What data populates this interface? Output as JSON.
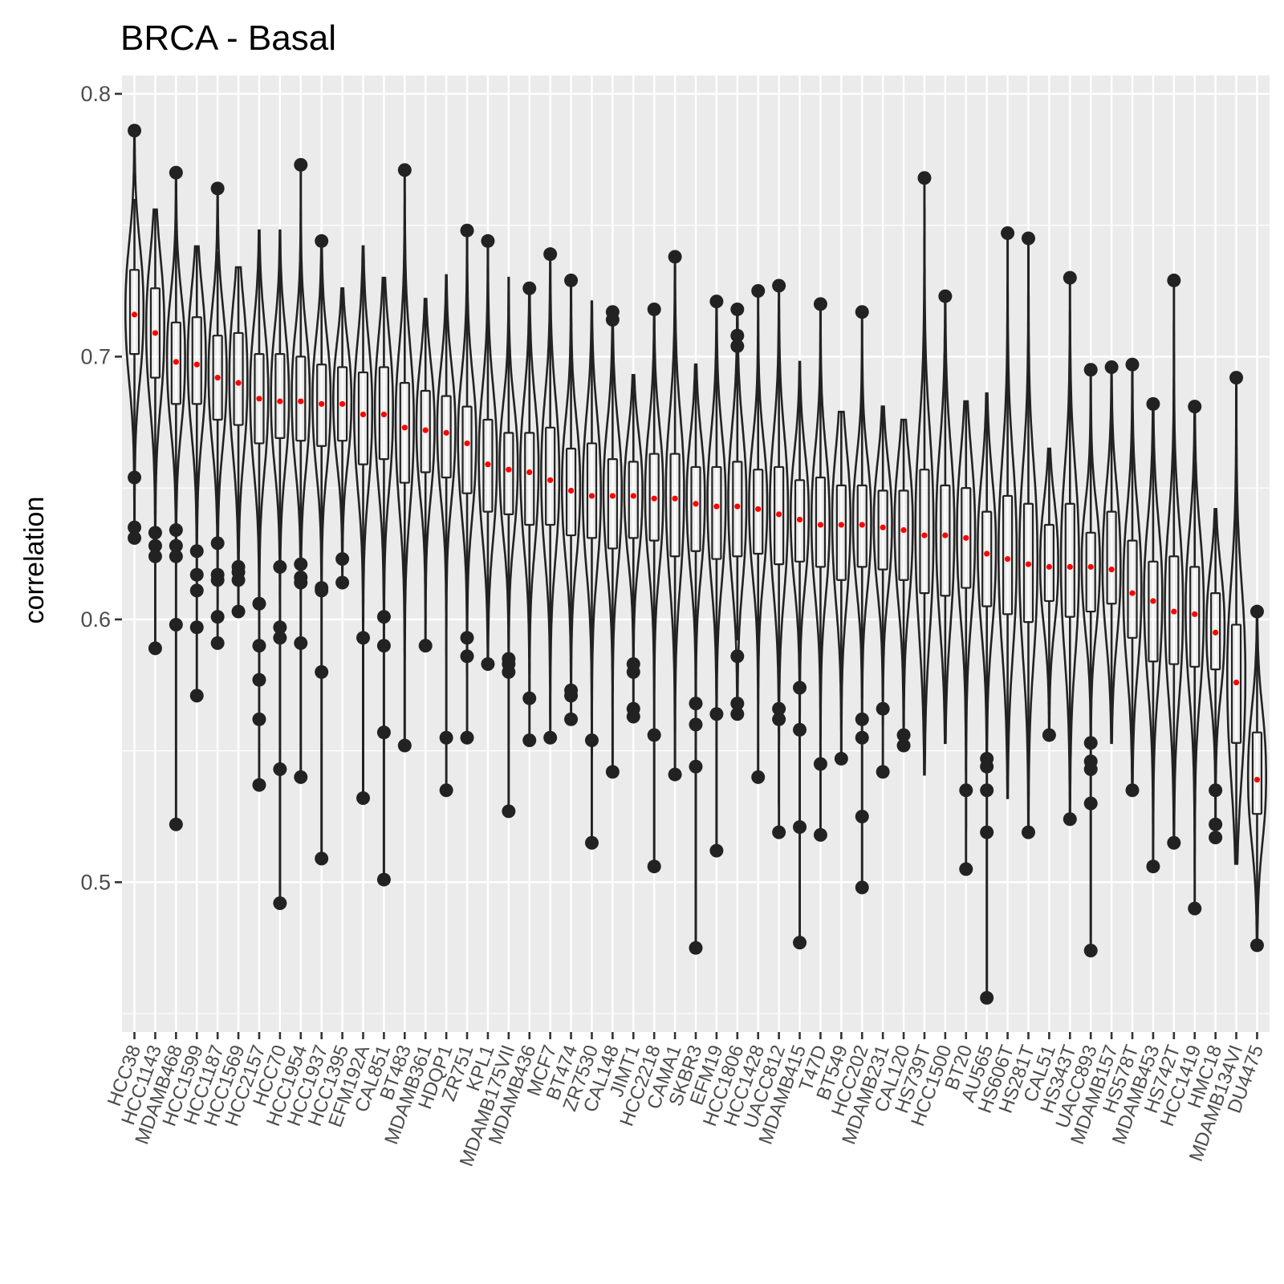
{
  "chart_data": {
    "type": "violin",
    "title": "BRCA - Basal",
    "xlabel": "",
    "ylabel": "correlation",
    "ylim": [
      0.443,
      0.807
    ],
    "yticks": [
      0.5,
      0.6,
      0.7,
      0.8
    ],
    "ytick_labels": [
      "0.5",
      "0.6",
      "0.7",
      "0.8"
    ],
    "grid": true,
    "colors": {
      "panel": "#ebebeb",
      "grid_major": "#ffffff",
      "outline": "#222222",
      "mean_point": "#ff0000"
    },
    "categories": [
      "HCC38",
      "HCC1143",
      "MDAMB468",
      "HCC1599",
      "HCC1187",
      "HCC1569",
      "HCC2157",
      "HCC70",
      "HCC1954",
      "HCC1937",
      "HCC1395",
      "EFM192A",
      "CAL851",
      "BT483",
      "MDAMB361",
      "HDQP1",
      "ZR751",
      "KPL1",
      "MDAMB175VII",
      "MDAMB436",
      "MCF7",
      "BT474",
      "ZR7530",
      "CAL148",
      "JIMT1",
      "HCC2218",
      "CAMA1",
      "SKBR3",
      "EFM19",
      "HCC1806",
      "HCC1428",
      "UACC812",
      "MDAMB415",
      "T47D",
      "BT549",
      "HCC202",
      "MDAMB231",
      "CAL120",
      "HS739T",
      "HCC1500",
      "BT20",
      "AU565",
      "HS606T",
      "HS281T",
      "CAL51",
      "HS343T",
      "UACC893",
      "MDAMB157",
      "HS578T",
      "MDAMB453",
      "HS742T",
      "HCC1419",
      "HMC18",
      "MDAMB134VI",
      "DU4475"
    ],
    "series": [
      {
        "name": "HCC38",
        "mean": 0.716,
        "q1": 0.701,
        "median": 0.716,
        "q3": 0.733,
        "whisker_low": 0.658,
        "whisker_high": 0.76,
        "min": 0.63,
        "max": 0.786,
        "outliers": [
          0.654,
          0.635,
          0.631,
          0.786
        ]
      },
      {
        "name": "HCC1143",
        "mean": 0.709,
        "q1": 0.692,
        "median": 0.709,
        "q3": 0.726,
        "whisker_low": 0.64,
        "whisker_high": 0.756,
        "min": 0.589,
        "max": 0.756,
        "outliers": [
          0.633,
          0.628,
          0.624,
          0.589
        ]
      },
      {
        "name": "MDAMB468",
        "mean": 0.698,
        "q1": 0.682,
        "median": 0.698,
        "q3": 0.713,
        "whisker_low": 0.64,
        "whisker_high": 0.75,
        "min": 0.522,
        "max": 0.77,
        "outliers": [
          0.77,
          0.634,
          0.628,
          0.624,
          0.598,
          0.522
        ]
      },
      {
        "name": "HCC1599",
        "mean": 0.697,
        "q1": 0.682,
        "median": 0.697,
        "q3": 0.715,
        "whisker_low": 0.63,
        "whisker_high": 0.742,
        "min": 0.571,
        "max": 0.742,
        "outliers": [
          0.626,
          0.617,
          0.611,
          0.597,
          0.571
        ]
      },
      {
        "name": "HCC1187",
        "mean": 0.692,
        "q1": 0.676,
        "median": 0.692,
        "q3": 0.708,
        "whisker_low": 0.632,
        "whisker_high": 0.74,
        "min": 0.591,
        "max": 0.764,
        "outliers": [
          0.764,
          0.629,
          0.617,
          0.615,
          0.601,
          0.591
        ]
      },
      {
        "name": "HCC1569",
        "mean": 0.69,
        "q1": 0.674,
        "median": 0.69,
        "q3": 0.709,
        "whisker_low": 0.625,
        "whisker_high": 0.734,
        "min": 0.603,
        "max": 0.734,
        "outliers": [
          0.62,
          0.618,
          0.615,
          0.603
        ]
      },
      {
        "name": "HCC2157",
        "mean": 0.684,
        "q1": 0.667,
        "median": 0.684,
        "q3": 0.701,
        "whisker_low": 0.615,
        "whisker_high": 0.748,
        "min": 0.537,
        "max": 0.748,
        "outliers": [
          0.606,
          0.59,
          0.577,
          0.562,
          0.537
        ]
      },
      {
        "name": "HCC70",
        "mean": 0.683,
        "q1": 0.669,
        "median": 0.683,
        "q3": 0.701,
        "whisker_low": 0.622,
        "whisker_high": 0.748,
        "min": 0.492,
        "max": 0.748,
        "outliers": [
          0.62,
          0.597,
          0.593,
          0.543,
          0.492
        ]
      },
      {
        "name": "HCC1954",
        "mean": 0.683,
        "q1": 0.668,
        "median": 0.683,
        "q3": 0.7,
        "whisker_low": 0.622,
        "whisker_high": 0.745,
        "min": 0.54,
        "max": 0.773,
        "outliers": [
          0.773,
          0.621,
          0.616,
          0.614,
          0.591,
          0.54
        ]
      },
      {
        "name": "HCC1937",
        "mean": 0.682,
        "q1": 0.666,
        "median": 0.682,
        "q3": 0.697,
        "whisker_low": 0.615,
        "whisker_high": 0.744,
        "min": 0.509,
        "max": 0.744,
        "outliers": [
          0.744,
          0.612,
          0.611,
          0.58,
          0.509
        ]
      },
      {
        "name": "HCC1395",
        "mean": 0.682,
        "q1": 0.668,
        "median": 0.682,
        "q3": 0.696,
        "whisker_low": 0.625,
        "whisker_high": 0.726,
        "min": 0.614,
        "max": 0.726,
        "outliers": [
          0.623,
          0.614
        ]
      },
      {
        "name": "EFM192A",
        "mean": 0.678,
        "q1": 0.659,
        "median": 0.678,
        "q3": 0.694,
        "whisker_low": 0.61,
        "whisker_high": 0.742,
        "min": 0.532,
        "max": 0.742,
        "outliers": [
          0.593,
          0.532
        ]
      },
      {
        "name": "CAL851",
        "mean": 0.678,
        "q1": 0.661,
        "median": 0.678,
        "q3": 0.696,
        "whisker_low": 0.61,
        "whisker_high": 0.73,
        "min": 0.501,
        "max": 0.73,
        "outliers": [
          0.601,
          0.59,
          0.557,
          0.501
        ]
      },
      {
        "name": "BT483",
        "mean": 0.673,
        "q1": 0.652,
        "median": 0.673,
        "q3": 0.69,
        "whisker_low": 0.6,
        "whisker_high": 0.74,
        "min": 0.552,
        "max": 0.771,
        "outliers": [
          0.771,
          0.552
        ]
      },
      {
        "name": "MDAMB361",
        "mean": 0.672,
        "q1": 0.656,
        "median": 0.672,
        "q3": 0.687,
        "whisker_low": 0.606,
        "whisker_high": 0.722,
        "min": 0.59,
        "max": 0.722,
        "outliers": [
          0.59
        ]
      },
      {
        "name": "HDQP1",
        "mean": 0.671,
        "q1": 0.654,
        "median": 0.671,
        "q3": 0.685,
        "whisker_low": 0.604,
        "whisker_high": 0.731,
        "min": 0.535,
        "max": 0.731,
        "outliers": [
          0.555,
          0.535
        ]
      },
      {
        "name": "ZR751",
        "mean": 0.667,
        "q1": 0.648,
        "median": 0.667,
        "q3": 0.681,
        "whisker_low": 0.6,
        "whisker_high": 0.73,
        "min": 0.555,
        "max": 0.748,
        "outliers": [
          0.748,
          0.593,
          0.586,
          0.555
        ]
      },
      {
        "name": "KPL1",
        "mean": 0.659,
        "q1": 0.641,
        "median": 0.659,
        "q3": 0.676,
        "whisker_low": 0.592,
        "whisker_high": 0.72,
        "min": 0.583,
        "max": 0.744,
        "outliers": [
          0.744,
          0.583
        ]
      },
      {
        "name": "MDAMB175VII",
        "mean": 0.657,
        "q1": 0.64,
        "median": 0.657,
        "q3": 0.671,
        "whisker_low": 0.592,
        "whisker_high": 0.73,
        "min": 0.527,
        "max": 0.73,
        "outliers": [
          0.585,
          0.583,
          0.58,
          0.527
        ]
      },
      {
        "name": "MDAMB436",
        "mean": 0.656,
        "q1": 0.636,
        "median": 0.656,
        "q3": 0.671,
        "whisker_low": 0.59,
        "whisker_high": 0.71,
        "min": 0.554,
        "max": 0.726,
        "outliers": [
          0.726,
          0.57,
          0.554
        ]
      },
      {
        "name": "MCF7",
        "mean": 0.653,
        "q1": 0.636,
        "median": 0.653,
        "q3": 0.673,
        "whisker_low": 0.59,
        "whisker_high": 0.72,
        "min": 0.555,
        "max": 0.739,
        "outliers": [
          0.739,
          0.555
        ]
      },
      {
        "name": "BT474",
        "mean": 0.649,
        "q1": 0.632,
        "median": 0.649,
        "q3": 0.665,
        "whisker_low": 0.585,
        "whisker_high": 0.71,
        "min": 0.562,
        "max": 0.729,
        "outliers": [
          0.729,
          0.573,
          0.571,
          0.562
        ]
      },
      {
        "name": "ZR7530",
        "mean": 0.647,
        "q1": 0.631,
        "median": 0.647,
        "q3": 0.667,
        "whisker_low": 0.58,
        "whisker_high": 0.721,
        "min": 0.515,
        "max": 0.721,
        "outliers": [
          0.554,
          0.515
        ]
      },
      {
        "name": "CAL148",
        "mean": 0.647,
        "q1": 0.627,
        "median": 0.647,
        "q3": 0.661,
        "whisker_low": 0.585,
        "whisker_high": 0.7,
        "min": 0.542,
        "max": 0.717,
        "outliers": [
          0.717,
          0.714,
          0.542
        ]
      },
      {
        "name": "JIMT1",
        "mean": 0.647,
        "q1": 0.631,
        "median": 0.647,
        "q3": 0.66,
        "whisker_low": 0.59,
        "whisker_high": 0.693,
        "min": 0.563,
        "max": 0.693,
        "outliers": [
          0.583,
          0.58,
          0.566,
          0.563
        ]
      },
      {
        "name": "HCC2218",
        "mean": 0.646,
        "q1": 0.63,
        "median": 0.646,
        "q3": 0.663,
        "whisker_low": 0.58,
        "whisker_high": 0.7,
        "min": 0.506,
        "max": 0.718,
        "outliers": [
          0.718,
          0.556,
          0.506
        ]
      },
      {
        "name": "CAMA1",
        "mean": 0.646,
        "q1": 0.624,
        "median": 0.646,
        "q3": 0.663,
        "whisker_low": 0.575,
        "whisker_high": 0.71,
        "min": 0.541,
        "max": 0.738,
        "outliers": [
          0.738,
          0.541
        ]
      },
      {
        "name": "SKBR3",
        "mean": 0.644,
        "q1": 0.626,
        "median": 0.644,
        "q3": 0.658,
        "whisker_low": 0.578,
        "whisker_high": 0.697,
        "min": 0.475,
        "max": 0.697,
        "outliers": [
          0.568,
          0.56,
          0.544,
          0.475
        ]
      },
      {
        "name": "EFM19",
        "mean": 0.643,
        "q1": 0.623,
        "median": 0.643,
        "q3": 0.658,
        "whisker_low": 0.575,
        "whisker_high": 0.7,
        "min": 0.512,
        "max": 0.721,
        "outliers": [
          0.721,
          0.564,
          0.512
        ]
      },
      {
        "name": "HCC1806",
        "mean": 0.643,
        "q1": 0.624,
        "median": 0.643,
        "q3": 0.66,
        "whisker_low": 0.592,
        "whisker_high": 0.7,
        "min": 0.564,
        "max": 0.718,
        "outliers": [
          0.718,
          0.708,
          0.704,
          0.586,
          0.568,
          0.564
        ]
      },
      {
        "name": "HCC1428",
        "mean": 0.642,
        "q1": 0.625,
        "median": 0.642,
        "q3": 0.657,
        "whisker_low": 0.58,
        "whisker_high": 0.7,
        "min": 0.54,
        "max": 0.725,
        "outliers": [
          0.725,
          0.54
        ]
      },
      {
        "name": "UACC812",
        "mean": 0.64,
        "q1": 0.621,
        "median": 0.64,
        "q3": 0.658,
        "whisker_low": 0.57,
        "whisker_high": 0.7,
        "min": 0.519,
        "max": 0.727,
        "outliers": [
          0.727,
          0.566,
          0.562,
          0.519
        ]
      },
      {
        "name": "MDAMB415",
        "mean": 0.638,
        "q1": 0.622,
        "median": 0.638,
        "q3": 0.653,
        "whisker_low": 0.578,
        "whisker_high": 0.698,
        "min": 0.477,
        "max": 0.698,
        "outliers": [
          0.574,
          0.558,
          0.521,
          0.477
        ]
      },
      {
        "name": "T47D",
        "mean": 0.636,
        "q1": 0.62,
        "median": 0.636,
        "q3": 0.654,
        "whisker_low": 0.56,
        "whisker_high": 0.7,
        "min": 0.518,
        "max": 0.72,
        "outliers": [
          0.72,
          0.545,
          0.518
        ]
      },
      {
        "name": "BT549",
        "mean": 0.636,
        "q1": 0.615,
        "median": 0.636,
        "q3": 0.651,
        "whisker_low": 0.56,
        "whisker_high": 0.679,
        "min": 0.547,
        "max": 0.679,
        "outliers": [
          0.547
        ]
      },
      {
        "name": "HCC202",
        "mean": 0.636,
        "q1": 0.62,
        "median": 0.636,
        "q3": 0.651,
        "whisker_low": 0.57,
        "whisker_high": 0.7,
        "min": 0.498,
        "max": 0.717,
        "outliers": [
          0.717,
          0.562,
          0.555,
          0.525,
          0.498
        ]
      },
      {
        "name": "MDAMB231",
        "mean": 0.635,
        "q1": 0.619,
        "median": 0.635,
        "q3": 0.649,
        "whisker_low": 0.57,
        "whisker_high": 0.681,
        "min": 0.542,
        "max": 0.681,
        "outliers": [
          0.566,
          0.542
        ]
      },
      {
        "name": "CAL120",
        "mean": 0.634,
        "q1": 0.615,
        "median": 0.634,
        "q3": 0.649,
        "whisker_low": 0.565,
        "whisker_high": 0.676,
        "min": 0.552,
        "max": 0.676,
        "outliers": [
          0.556,
          0.552
        ]
      },
      {
        "name": "HS739T",
        "mean": 0.632,
        "q1": 0.61,
        "median": 0.632,
        "q3": 0.657,
        "whisker_low": 0.541,
        "whisker_high": 0.74,
        "min": 0.541,
        "max": 0.768,
        "outliers": [
          0.768
        ]
      },
      {
        "name": "HCC1500",
        "mean": 0.632,
        "q1": 0.609,
        "median": 0.632,
        "q3": 0.651,
        "whisker_low": 0.553,
        "whisker_high": 0.7,
        "min": 0.553,
        "max": 0.723,
        "outliers": [
          0.723
        ]
      },
      {
        "name": "BT20",
        "mean": 0.631,
        "q1": 0.612,
        "median": 0.631,
        "q3": 0.65,
        "whisker_low": 0.55,
        "whisker_high": 0.683,
        "min": 0.505,
        "max": 0.683,
        "outliers": [
          0.535,
          0.505
        ]
      },
      {
        "name": "AU565",
        "mean": 0.625,
        "q1": 0.605,
        "median": 0.625,
        "q3": 0.641,
        "whisker_low": 0.555,
        "whisker_high": 0.686,
        "min": 0.456,
        "max": 0.686,
        "outliers": [
          0.547,
          0.544,
          0.535,
          0.519,
          0.456
        ]
      },
      {
        "name": "HS606T",
        "mean": 0.623,
        "q1": 0.602,
        "median": 0.623,
        "q3": 0.647,
        "whisker_low": 0.532,
        "whisker_high": 0.72,
        "min": 0.532,
        "max": 0.747,
        "outliers": [
          0.747
        ]
      },
      {
        "name": "HS281T",
        "mean": 0.621,
        "q1": 0.599,
        "median": 0.621,
        "q3": 0.644,
        "whisker_low": 0.53,
        "whisker_high": 0.72,
        "min": 0.519,
        "max": 0.745,
        "outliers": [
          0.745,
          0.519
        ]
      },
      {
        "name": "CAL51",
        "mean": 0.62,
        "q1": 0.607,
        "median": 0.62,
        "q3": 0.636,
        "whisker_low": 0.57,
        "whisker_high": 0.665,
        "min": 0.556,
        "max": 0.665,
        "outliers": [
          0.556
        ]
      },
      {
        "name": "HS343T",
        "mean": 0.62,
        "q1": 0.601,
        "median": 0.62,
        "q3": 0.644,
        "whisker_low": 0.54,
        "whisker_high": 0.7,
        "min": 0.524,
        "max": 0.73,
        "outliers": [
          0.73,
          0.524
        ]
      },
      {
        "name": "UACC893",
        "mean": 0.62,
        "q1": 0.603,
        "median": 0.62,
        "q3": 0.633,
        "whisker_low": 0.56,
        "whisker_high": 0.695,
        "min": 0.474,
        "max": 0.695,
        "outliers": [
          0.695,
          0.553,
          0.546,
          0.543,
          0.53,
          0.474
        ]
      },
      {
        "name": "MDAMB157",
        "mean": 0.619,
        "q1": 0.606,
        "median": 0.619,
        "q3": 0.641,
        "whisker_low": 0.553,
        "whisker_high": 0.696,
        "min": 0.553,
        "max": 0.696,
        "outliers": [
          0.696
        ]
      },
      {
        "name": "HS578T",
        "mean": 0.61,
        "q1": 0.593,
        "median": 0.61,
        "q3": 0.63,
        "whisker_low": 0.545,
        "whisker_high": 0.68,
        "min": 0.535,
        "max": 0.697,
        "outliers": [
          0.697,
          0.535
        ]
      },
      {
        "name": "MDAMB453",
        "mean": 0.607,
        "q1": 0.584,
        "median": 0.607,
        "q3": 0.622,
        "whisker_low": 0.53,
        "whisker_high": 0.682,
        "min": 0.506,
        "max": 0.682,
        "outliers": [
          0.682,
          0.506
        ]
      },
      {
        "name": "HS742T",
        "mean": 0.603,
        "q1": 0.583,
        "median": 0.603,
        "q3": 0.624,
        "whisker_low": 0.525,
        "whisker_high": 0.71,
        "min": 0.515,
        "max": 0.729,
        "outliers": [
          0.729,
          0.515
        ]
      },
      {
        "name": "HCC1419",
        "mean": 0.602,
        "q1": 0.582,
        "median": 0.602,
        "q3": 0.62,
        "whisker_low": 0.53,
        "whisker_high": 0.66,
        "min": 0.49,
        "max": 0.681,
        "outliers": [
          0.681,
          0.49
        ]
      },
      {
        "name": "HMC18",
        "mean": 0.595,
        "q1": 0.581,
        "median": 0.595,
        "q3": 0.61,
        "whisker_low": 0.54,
        "whisker_high": 0.642,
        "min": 0.517,
        "max": 0.642,
        "outliers": [
          0.535,
          0.522,
          0.517
        ]
      },
      {
        "name": "MDAMB134VI",
        "mean": 0.576,
        "q1": 0.553,
        "median": 0.576,
        "q3": 0.598,
        "whisker_low": 0.507,
        "whisker_high": 0.66,
        "min": 0.507,
        "max": 0.692,
        "outliers": [
          0.692
        ]
      },
      {
        "name": "DU4475",
        "mean": 0.539,
        "q1": 0.526,
        "median": 0.539,
        "q3": 0.557,
        "whisker_low": 0.49,
        "whisker_high": 0.603,
        "min": 0.476,
        "max": 0.603,
        "outliers": [
          0.603,
          0.476
        ]
      }
    ]
  }
}
